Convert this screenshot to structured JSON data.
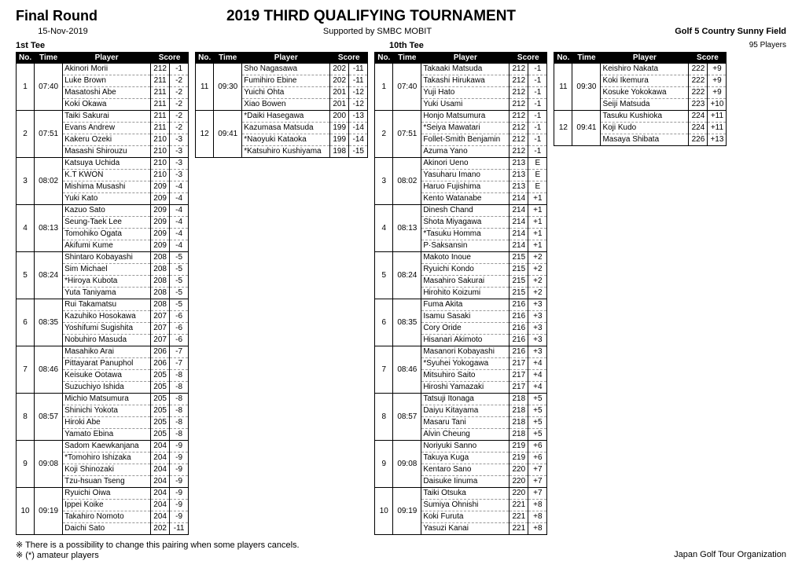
{
  "header": {
    "title_left": "Final Round",
    "title_main": "2019   THIRD QUALIFYING TOURNAMENT",
    "date": "15-Nov-2019",
    "supported": "Supported by SMBC MOBIT",
    "venue": "Golf 5 Country Sunny Field",
    "tee1": "1st Tee",
    "tee10": "10th Tee",
    "players_count": "95 Players"
  },
  "table_headers": {
    "no": "No.",
    "time": "Time",
    "player": "Player",
    "score": "Score"
  },
  "notes": {
    "line1": "※ There is a possibility to change this pairing when some players cancels.",
    "line2": "※ (*) amateur players",
    "org": "Japan Golf Tour Organization"
  },
  "columns": [
    {
      "groups": [
        {
          "no": "1",
          "time": "07:40",
          "players": [
            [
              "Akinori Morii",
              "212",
              "-1"
            ],
            [
              "Luke Brown",
              "211",
              "-2"
            ],
            [
              "Masatoshi Abe",
              "211",
              "-2"
            ],
            [
              "Koki Okawa",
              "211",
              "-2"
            ]
          ]
        },
        {
          "no": "2",
          "time": "07:51",
          "players": [
            [
              "Taiki Sakurai",
              "211",
              "-2"
            ],
            [
              "Evans Andrew",
              "211",
              "-2"
            ],
            [
              "Kakeru Ozeki",
              "210",
              "-3"
            ],
            [
              "Masashi Shirouzu",
              "210",
              "-3"
            ]
          ]
        },
        {
          "no": "3",
          "time": "08:02",
          "players": [
            [
              "Katsuya Uchida",
              "210",
              "-3"
            ],
            [
              "K.T KWON",
              "210",
              "-3"
            ],
            [
              "Mishima Musashi",
              "209",
              "-4"
            ],
            [
              "Yuki Kato",
              "209",
              "-4"
            ]
          ]
        },
        {
          "no": "4",
          "time": "08:13",
          "players": [
            [
              "Kazuo Sato",
              "209",
              "-4"
            ],
            [
              "Seung-Taek Lee",
              "209",
              "-4"
            ],
            [
              "Tomohiko Ogata",
              "209",
              "-4"
            ],
            [
              "Akifumi Kume",
              "209",
              "-4"
            ]
          ]
        },
        {
          "no": "5",
          "time": "08:24",
          "players": [
            [
              "Shintaro Kobayashi",
              "208",
              "-5"
            ],
            [
              "Sim Michael",
              "208",
              "-5"
            ],
            [
              "*Hiroya Kubota",
              "208",
              "-5"
            ],
            [
              "Yuta Taniyama",
              "208",
              "-5"
            ]
          ]
        },
        {
          "no": "6",
          "time": "08:35",
          "players": [
            [
              "Rui Takamatsu",
              "208",
              "-5"
            ],
            [
              "Kazuhiko Hosokawa",
              "207",
              "-6"
            ],
            [
              "Yoshifumi Sugishita",
              "207",
              "-6"
            ],
            [
              "Nobuhiro Masuda",
              "207",
              "-6"
            ]
          ]
        },
        {
          "no": "7",
          "time": "08:46",
          "players": [
            [
              "Masahiko Arai",
              "206",
              "-7"
            ],
            [
              "Pittayarat Panuphol",
              "206",
              "-7"
            ],
            [
              "Keisuke Ootawa",
              "205",
              "-8"
            ],
            [
              "Suzuchiyo Ishida",
              "205",
              "-8"
            ]
          ]
        },
        {
          "no": "8",
          "time": "08:57",
          "players": [
            [
              "Michio Matsumura",
              "205",
              "-8"
            ],
            [
              "Shinichi Yokota",
              "205",
              "-8"
            ],
            [
              "Hiroki Abe",
              "205",
              "-8"
            ],
            [
              "Yamato Ebina",
              "205",
              "-8"
            ]
          ]
        },
        {
          "no": "9",
          "time": "09:08",
          "players": [
            [
              "Sadom Kaewkanjana",
              "204",
              "-9"
            ],
            [
              "*Tomohiro Ishizaka",
              "204",
              "-9"
            ],
            [
              "Koji Shinozaki",
              "204",
              "-9"
            ],
            [
              "Tzu-hsuan Tseng",
              "204",
              "-9"
            ]
          ]
        },
        {
          "no": "10",
          "time": "09:19",
          "players": [
            [
              "Ryuichi Oiwa",
              "204",
              "-9"
            ],
            [
              "Ippei Koike",
              "204",
              "-9"
            ],
            [
              "Takahiro Nomoto",
              "204",
              "-9"
            ],
            [
              "Daichi Sato",
              "202",
              "-11"
            ]
          ]
        }
      ]
    },
    {
      "groups": [
        {
          "no": "11",
          "time": "09:30",
          "players": [
            [
              "Sho Nagasawa",
              "202",
              "-11"
            ],
            [
              "Fumihiro Ebine",
              "202",
              "-11"
            ],
            [
              "Yuichi Ohta",
              "201",
              "-12"
            ],
            [
              "Xiao Bowen",
              "201",
              "-12"
            ]
          ]
        },
        {
          "no": "12",
          "time": "09:41",
          "players": [
            [
              "*Daiki Hasegawa",
              "200",
              "-13"
            ],
            [
              "Kazumasa Matsuda",
              "199",
              "-14"
            ],
            [
              "*Naoyuki Kataoka",
              "199",
              "-14"
            ],
            [
              "*Katsuhiro Kushiyama",
              "198",
              "-15"
            ]
          ]
        }
      ]
    },
    {
      "groups": [
        {
          "no": "1",
          "time": "07:40",
          "players": [
            [
              "Takaaki Matsuda",
              "212",
              "-1"
            ],
            [
              "Takashi Hirukawa",
              "212",
              "-1"
            ],
            [
              "Yuji Hato",
              "212",
              "-1"
            ],
            [
              "Yuki Usami",
              "212",
              "-1"
            ]
          ]
        },
        {
          "no": "2",
          "time": "07:51",
          "players": [
            [
              "Honjo Matsumura",
              "212",
              "-1"
            ],
            [
              "*Seiya Mawatari",
              "212",
              "-1"
            ],
            [
              "Follet-Smith Benjamin",
              "212",
              "-1"
            ],
            [
              "Azuma Yano",
              "212",
              "-1"
            ]
          ]
        },
        {
          "no": "3",
          "time": "08:02",
          "players": [
            [
              "Akinori Ueno",
              "213",
              "E"
            ],
            [
              "Yasuharu Imano",
              "213",
              "E"
            ],
            [
              "Haruo Fujishima",
              "213",
              "E"
            ],
            [
              "Kento Watanabe",
              "214",
              "+1"
            ]
          ]
        },
        {
          "no": "4",
          "time": "08:13",
          "players": [
            [
              "Dinesh Chand",
              "214",
              "+1"
            ],
            [
              "Shota Miyagawa",
              "214",
              "+1"
            ],
            [
              "*Tasuku Homma",
              "214",
              "+1"
            ],
            [
              "P·Saksansin",
              "214",
              "+1"
            ]
          ]
        },
        {
          "no": "5",
          "time": "08:24",
          "players": [
            [
              "Makoto Inoue",
              "215",
              "+2"
            ],
            [
              "Ryuichi Kondo",
              "215",
              "+2"
            ],
            [
              "Masahiro Sakurai",
              "215",
              "+2"
            ],
            [
              "Hirohito Koizumi",
              "215",
              "+2"
            ]
          ]
        },
        {
          "no": "6",
          "time": "08:35",
          "players": [
            [
              "Fuma Akita",
              "216",
              "+3"
            ],
            [
              "Isamu Sasaki",
              "216",
              "+3"
            ],
            [
              "Cory Oride",
              "216",
              "+3"
            ],
            [
              "Hisanari Akimoto",
              "216",
              "+3"
            ]
          ]
        },
        {
          "no": "7",
          "time": "08:46",
          "players": [
            [
              "Masanori Kobayashi",
              "216",
              "+3"
            ],
            [
              "*Syuhei Yokogawa",
              "217",
              "+4"
            ],
            [
              "Mitsuhiro Saito",
              "217",
              "+4"
            ],
            [
              "Hiroshi Yamazaki",
              "217",
              "+4"
            ]
          ]
        },
        {
          "no": "8",
          "time": "08:57",
          "players": [
            [
              "Tatsuji Itonaga",
              "218",
              "+5"
            ],
            [
              "Daiyu Kitayama",
              "218",
              "+5"
            ],
            [
              "Masaru Tani",
              "218",
              "+5"
            ],
            [
              "Alvin Cheung",
              "218",
              "+5"
            ]
          ]
        },
        {
          "no": "9",
          "time": "09:08",
          "players": [
            [
              "Noriyuki Sanno",
              "219",
              "+6"
            ],
            [
              "Takuya Kuga",
              "219",
              "+6"
            ],
            [
              "Kentaro Sano",
              "220",
              "+7"
            ],
            [
              "Daisuke Iinuma",
              "220",
              "+7"
            ]
          ]
        },
        {
          "no": "10",
          "time": "09:19",
          "players": [
            [
              "Taiki Otsuka",
              "220",
              "+7"
            ],
            [
              "Sumiya Ohnishi",
              "221",
              "+8"
            ],
            [
              "Koki Furuta",
              "221",
              "+8"
            ],
            [
              "Yasuzi Kanai",
              "221",
              "+8"
            ]
          ]
        }
      ]
    },
    {
      "groups": [
        {
          "no": "11",
          "time": "09:30",
          "players": [
            [
              "Keishiro Nakata",
              "222",
              "+9"
            ],
            [
              "Koki Ikemura",
              "222",
              "+9"
            ],
            [
              "Kosuke Yokokawa",
              "222",
              "+9"
            ],
            [
              "Seiji Matsuda",
              "223",
              "+10"
            ]
          ]
        },
        {
          "no": "12",
          "time": "09:41",
          "players": [
            [
              "Tasuku Kushioka",
              "224",
              "+11"
            ],
            [
              "Koji Kudo",
              "224",
              "+11"
            ],
            [
              "Masaya Shibata",
              "226",
              "+13"
            ]
          ]
        }
      ]
    }
  ]
}
